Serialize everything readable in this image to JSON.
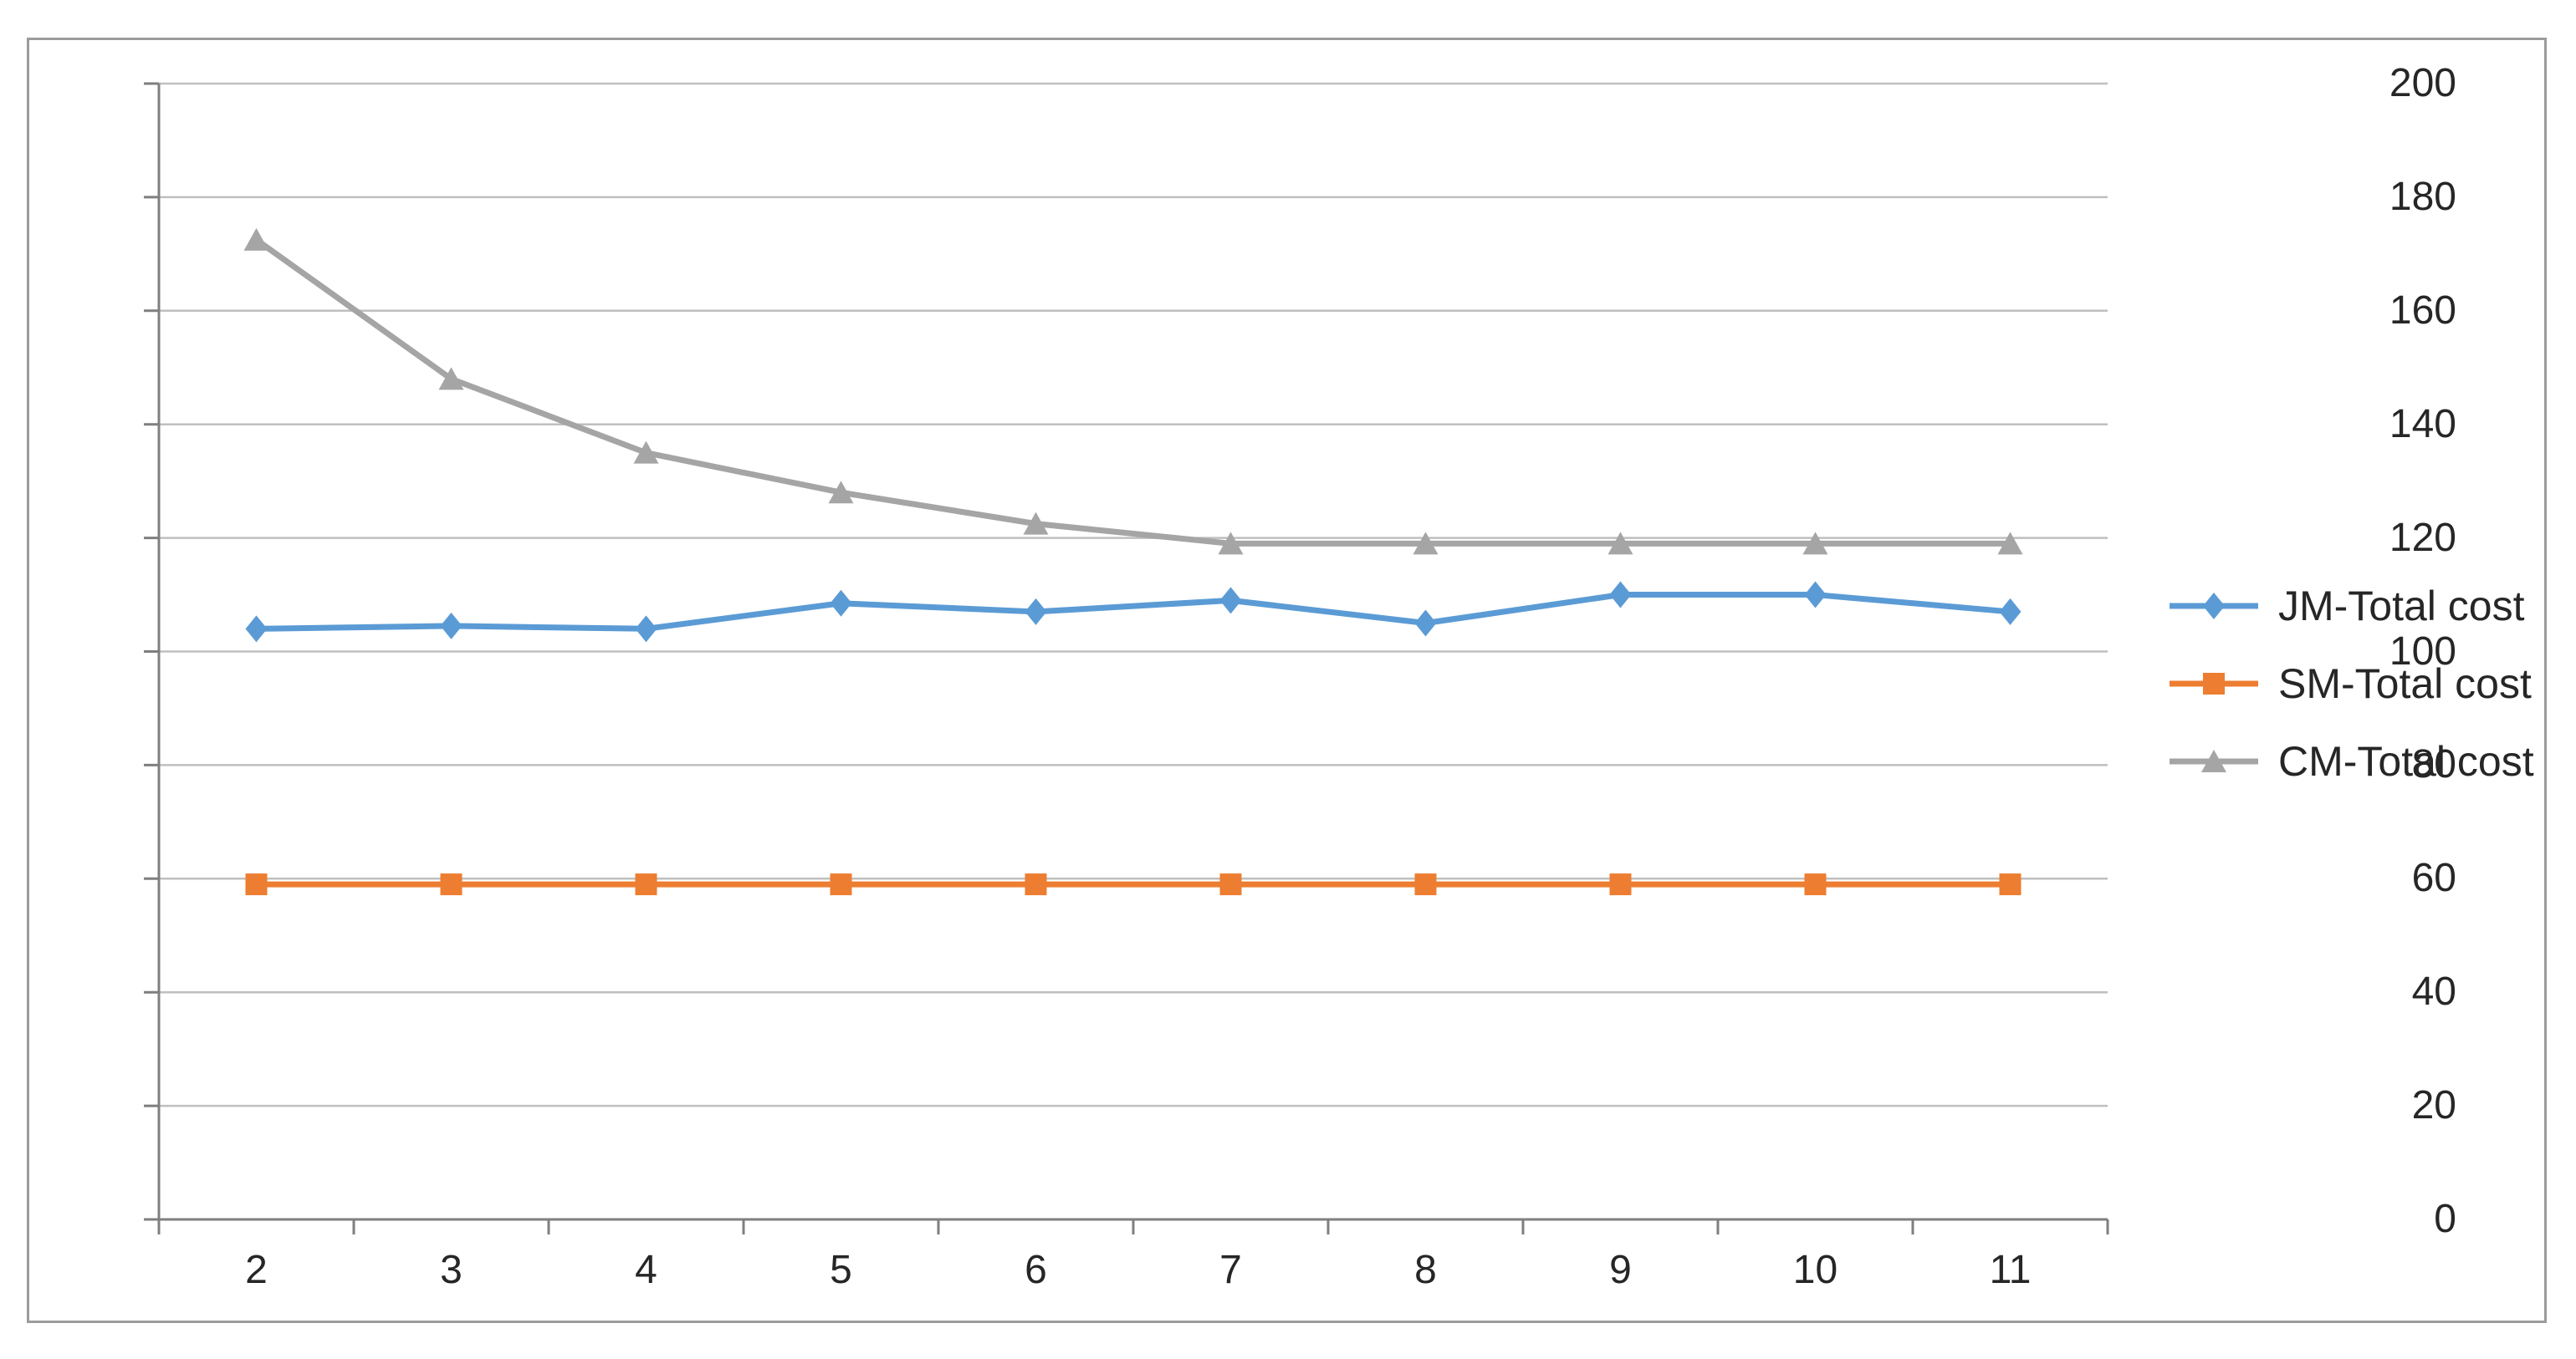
{
  "chart_data": {
    "type": "line",
    "title": "",
    "xlabel": "",
    "ylabel": "",
    "categories": [
      2,
      3,
      4,
      5,
      6,
      7,
      8,
      9,
      10,
      11
    ],
    "series": [
      {
        "name": "JM-Total cost",
        "color": "#5B9BD5",
        "marker": "diamond",
        "values": [
          104,
          104.5,
          104,
          108.5,
          107,
          109,
          105,
          110,
          110,
          107
        ]
      },
      {
        "name": "SM-Total cost",
        "color": "#ED7D31",
        "marker": "square",
        "values": [
          59,
          59,
          59,
          59,
          59,
          59,
          59,
          59,
          59,
          59
        ]
      },
      {
        "name": "CM-Total cost",
        "color": "#A5A5A5",
        "marker": "triangle",
        "values": [
          172.5,
          148,
          135,
          128,
          122.5,
          119,
          119,
          119,
          119,
          119
        ]
      }
    ],
    "ylim": [
      0,
      200
    ],
    "ytick_step": 20,
    "grid": true,
    "legend_position": "right"
  },
  "axes": {
    "y_tick_labels": [
      "0",
      "20",
      "40",
      "60",
      "80",
      "100",
      "120",
      "140",
      "160",
      "180",
      "200"
    ],
    "x_tick_labels": [
      "2",
      "3",
      "4",
      "5",
      "6",
      "7",
      "8",
      "9",
      "10",
      "11"
    ]
  },
  "colors": {
    "grid": "#BFBFBF",
    "axis": "#7F7F7F",
    "frame": "#9B9B9B",
    "text": "#262626",
    "background": "#FFFFFF"
  }
}
